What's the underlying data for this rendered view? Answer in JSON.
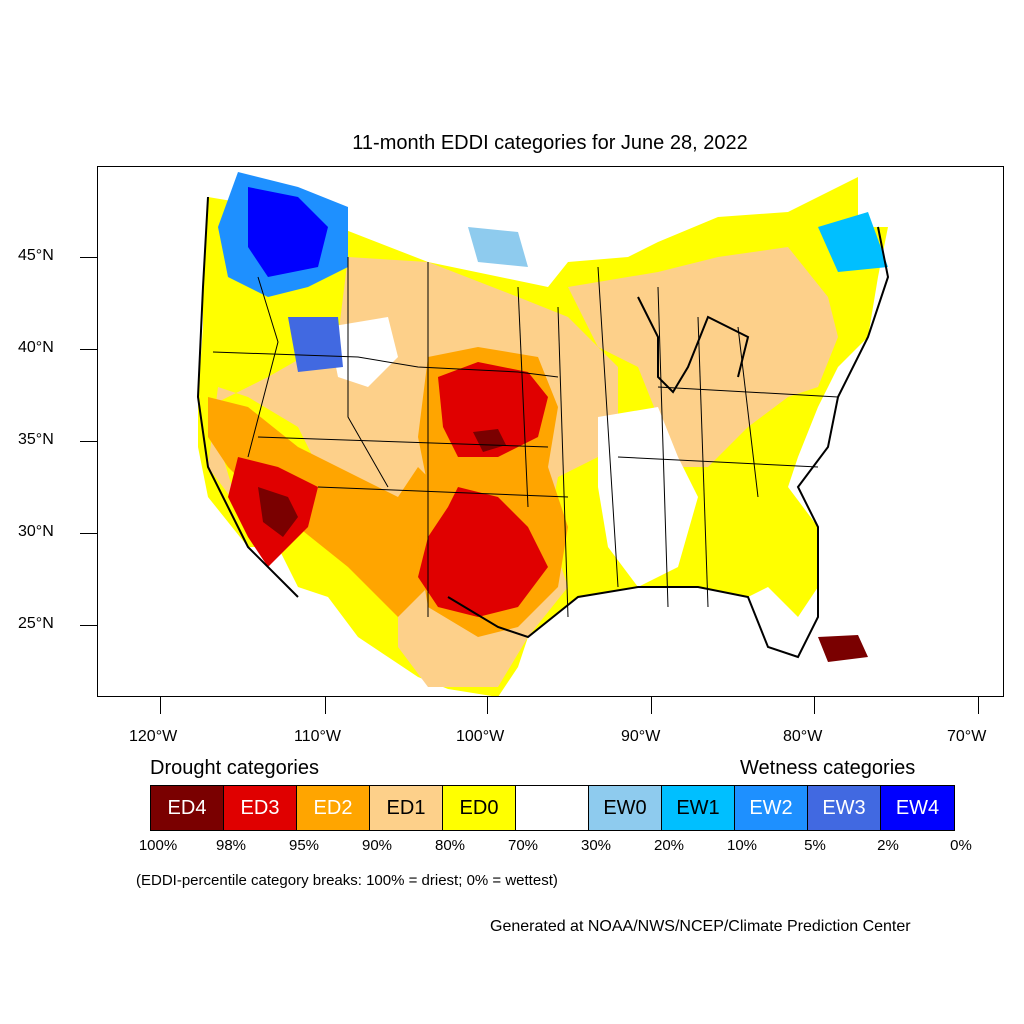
{
  "title": "11-month EDDI categories for June 28, 2022",
  "map": {
    "lat_labels": [
      "45°N",
      "40°N",
      "35°N",
      "30°N",
      "25°N"
    ],
    "lon_labels": [
      "120°W",
      "110°W",
      "100°W",
      "90°W",
      "80°W",
      "70°W"
    ]
  },
  "legend": {
    "drought_heading": "Drought categories",
    "wetness_heading": "Wetness categories",
    "categories": [
      {
        "label": "ED4",
        "color": "#7a0000",
        "text_color": "#ffffff"
      },
      {
        "label": "ED3",
        "color": "#e00000",
        "text_color": "#ffffff"
      },
      {
        "label": "ED2",
        "color": "#ffa500",
        "text_color": "#ffffff"
      },
      {
        "label": "ED1",
        "color": "#fdd08a",
        "text_color": "#000000"
      },
      {
        "label": "ED0",
        "color": "#ffff00",
        "text_color": "#000000"
      },
      {
        "label": "",
        "color": "#ffffff",
        "text_color": "#000000"
      },
      {
        "label": "EW0",
        "color": "#8ecbee",
        "text_color": "#000000"
      },
      {
        "label": "EW1",
        "color": "#00bfff",
        "text_color": "#000000"
      },
      {
        "label": "EW2",
        "color": "#1e90ff",
        "text_color": "#ffffff"
      },
      {
        "label": "EW3",
        "color": "#4169e1",
        "text_color": "#ffffff"
      },
      {
        "label": "EW4",
        "color": "#0000ff",
        "text_color": "#ffffff"
      }
    ],
    "percent_breaks": [
      "100%",
      "98%",
      "95%",
      "90%",
      "80%",
      "70%",
      "30%",
      "20%",
      "10%",
      "5%",
      "2%",
      "0%"
    ],
    "note": "(EDDI-percentile category breaks: 100% = driest; 0% = wettest)"
  },
  "credit": "Generated at NOAA/NWS/NCEP/Climate Prediction Center"
}
